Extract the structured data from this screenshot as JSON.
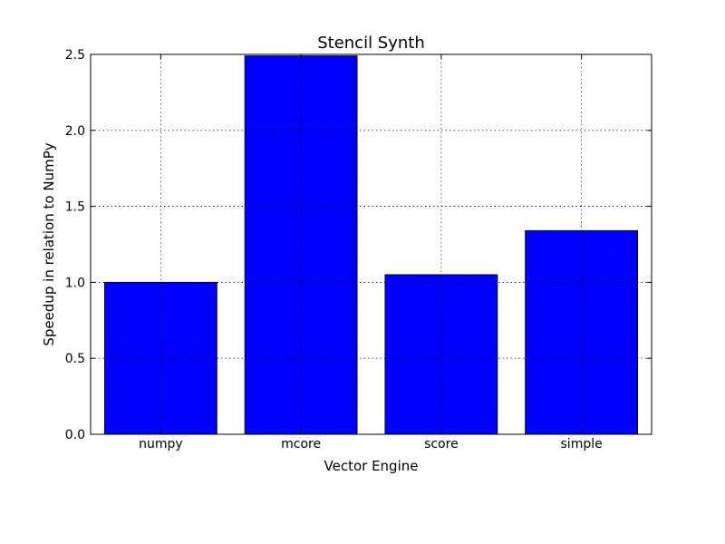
{
  "chart_data": {
    "type": "bar",
    "title": "Stencil Synth",
    "xlabel": "Vector Engine",
    "ylabel": "Speedup in relation to NumPy",
    "categories": [
      "numpy",
      "mcore",
      "score",
      "simple"
    ],
    "values": [
      1.0,
      2.49,
      1.05,
      1.34
    ],
    "ylim": [
      0,
      2.5
    ],
    "yticks": [
      "0.0",
      "0.5",
      "1.0",
      "1.5",
      "2.0",
      "2.5"
    ],
    "grid": true,
    "legend": "none",
    "bar_color": "#0000ff"
  }
}
